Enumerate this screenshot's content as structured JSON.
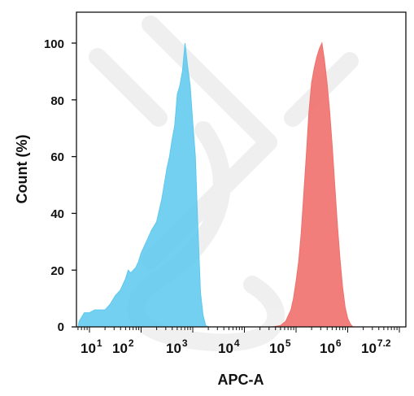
{
  "chart_data": {
    "type": "area",
    "xlabel": "APC-A",
    "ylabel": "Count  (%)",
    "x_scale": "log10",
    "xlim": [
      0.75,
      7.2
    ],
    "ylim": [
      0,
      107
    ],
    "x_ticks": [
      {
        "value": 1,
        "base": "10",
        "exp": "1"
      },
      {
        "value": 2,
        "base": "10",
        "exp": "2"
      },
      {
        "value": 3,
        "base": "10",
        "exp": "3"
      },
      {
        "value": 4,
        "base": "10",
        "exp": "4"
      },
      {
        "value": 5,
        "base": "10",
        "exp": "5"
      },
      {
        "value": 6,
        "base": "10",
        "exp": "6"
      },
      {
        "value": 7.2,
        "base": "10",
        "exp": "7.2"
      }
    ],
    "y_ticks": [
      0,
      20,
      40,
      60,
      80,
      100
    ],
    "grid": false,
    "series": [
      {
        "color": "#5cc8ef",
        "opacity": 0.85,
        "points": [
          [
            0.78,
            0
          ],
          [
            0.8,
            2
          ],
          [
            0.9,
            5
          ],
          [
            1.0,
            5
          ],
          [
            1.1,
            6
          ],
          [
            1.2,
            6
          ],
          [
            1.3,
            6
          ],
          [
            1.4,
            8
          ],
          [
            1.5,
            11
          ],
          [
            1.6,
            13
          ],
          [
            1.7,
            17
          ],
          [
            1.75,
            20
          ],
          [
            1.8,
            19
          ],
          [
            1.9,
            21
          ],
          [
            1.95,
            23
          ],
          [
            2.0,
            26
          ],
          [
            2.1,
            30
          ],
          [
            2.2,
            34
          ],
          [
            2.3,
            37
          ],
          [
            2.4,
            45
          ],
          [
            2.5,
            56
          ],
          [
            2.55,
            60
          ],
          [
            2.6,
            66
          ],
          [
            2.65,
            71
          ],
          [
            2.7,
            82
          ],
          [
            2.75,
            85
          ],
          [
            2.8,
            90
          ],
          [
            2.85,
            100
          ],
          [
            2.9,
            92
          ],
          [
            2.95,
            85
          ],
          [
            3.0,
            72
          ],
          [
            3.05,
            60
          ],
          [
            3.1,
            35
          ],
          [
            3.15,
            12
          ],
          [
            3.2,
            4
          ],
          [
            3.25,
            0.5
          ],
          [
            3.3,
            0
          ]
        ]
      },
      {
        "color": "#f0706c",
        "opacity": 0.9,
        "points": [
          [
            4.55,
            0
          ],
          [
            4.7,
            0.5
          ],
          [
            4.8,
            2
          ],
          [
            4.85,
            4
          ],
          [
            4.9,
            6
          ],
          [
            4.95,
            10
          ],
          [
            5.0,
            16
          ],
          [
            5.05,
            23
          ],
          [
            5.1,
            33
          ],
          [
            5.15,
            47
          ],
          [
            5.2,
            61
          ],
          [
            5.25,
            76
          ],
          [
            5.3,
            86
          ],
          [
            5.35,
            91
          ],
          [
            5.4,
            95
          ],
          [
            5.45,
            98
          ],
          [
            5.5,
            100
          ],
          [
            5.55,
            94
          ],
          [
            5.6,
            86
          ],
          [
            5.65,
            76
          ],
          [
            5.7,
            64
          ],
          [
            5.75,
            50
          ],
          [
            5.8,
            36
          ],
          [
            5.85,
            24
          ],
          [
            5.9,
            14
          ],
          [
            5.95,
            7
          ],
          [
            6.0,
            3
          ],
          [
            6.05,
            1
          ],
          [
            6.1,
            0
          ]
        ]
      }
    ]
  }
}
